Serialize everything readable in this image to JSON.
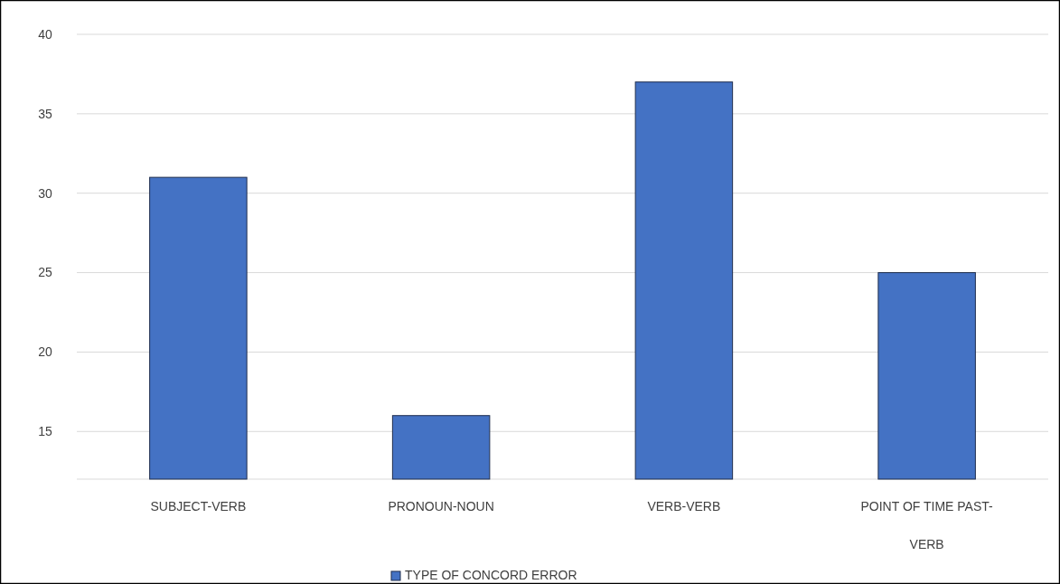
{
  "chart_data": {
    "type": "bar",
    "categories": [
      "SUBJECT-VERB",
      "PRONOUN-NOUN",
      "VERB-VERB",
      "POINT OF TIME PAST-VERB"
    ],
    "series": [
      {
        "name": "TYPE OF CONCORD ERROR",
        "color": "#4472c4",
        "values": [
          31,
          16,
          37,
          25
        ]
      }
    ],
    "ylim": [
      12,
      40
    ],
    "yticks": [
      15,
      20,
      25,
      30,
      35,
      40
    ],
    "grid": "y",
    "legend": "bottom"
  }
}
